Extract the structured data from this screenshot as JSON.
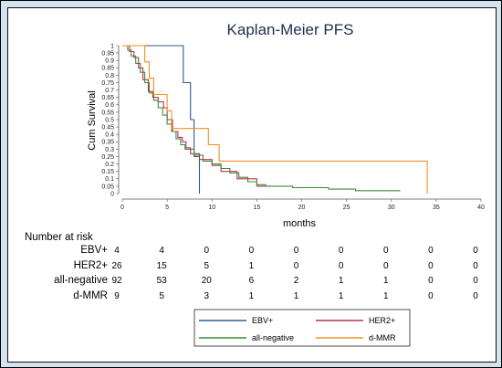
{
  "chart_data": {
    "type": "line",
    "title": "Kaplan-Meier PFS",
    "xlabel": "months",
    "ylabel": "Cum Survival",
    "xlim": [
      0,
      40
    ],
    "ylim": [
      0,
      1
    ],
    "xticks": [
      "0",
      "5",
      "10",
      "15",
      "20",
      "25",
      "30",
      "35",
      "40"
    ],
    "yticks": [
      "0",
      "0.05",
      "0.1",
      "0.15",
      "0.2",
      "0.25",
      "0.3",
      "0.35",
      "0.4",
      "0.45",
      "0.5",
      "0.55",
      "0.6",
      "0.65",
      "0.7",
      "0.75",
      "0.8",
      "0.85",
      "0.9",
      "0.95",
      "1"
    ],
    "series": [
      {
        "name": "EBV+",
        "color": "#2c5d8e",
        "points": [
          [
            0,
            1
          ],
          [
            6.8,
            1
          ],
          [
            6.8,
            0.75
          ],
          [
            7.6,
            0.75
          ],
          [
            7.6,
            0.5
          ],
          [
            8.0,
            0.5
          ],
          [
            8.0,
            0.25
          ],
          [
            8.6,
            0.25
          ],
          [
            8.6,
            0
          ]
        ]
      },
      {
        "name": "HER2+",
        "color": "#c0304a",
        "points": [
          [
            0,
            1
          ],
          [
            0.8,
            1
          ],
          [
            0.8,
            0.96
          ],
          [
            1.3,
            0.96
          ],
          [
            1.3,
            0.92
          ],
          [
            1.8,
            0.92
          ],
          [
            1.8,
            0.85
          ],
          [
            2.3,
            0.85
          ],
          [
            2.3,
            0.77
          ],
          [
            2.9,
            0.77
          ],
          [
            2.9,
            0.69
          ],
          [
            3.4,
            0.69
          ],
          [
            3.4,
            0.65
          ],
          [
            4.0,
            0.65
          ],
          [
            4.0,
            0.62
          ],
          [
            4.6,
            0.62
          ],
          [
            4.6,
            0.58
          ],
          [
            5.0,
            0.58
          ],
          [
            5.0,
            0.5
          ],
          [
            5.6,
            0.5
          ],
          [
            5.6,
            0.42
          ],
          [
            6.2,
            0.42
          ],
          [
            6.2,
            0.38
          ],
          [
            6.7,
            0.38
          ],
          [
            6.7,
            0.35
          ],
          [
            7.1,
            0.35
          ],
          [
            7.1,
            0.31
          ],
          [
            7.6,
            0.31
          ],
          [
            7.6,
            0.27
          ],
          [
            8.6,
            0.27
          ],
          [
            8.6,
            0.23
          ],
          [
            10.0,
            0.23
          ],
          [
            10.0,
            0.19
          ],
          [
            11.0,
            0.19
          ],
          [
            11.0,
            0.15
          ],
          [
            12.8,
            0.15
          ],
          [
            12.8,
            0.1
          ],
          [
            15.0,
            0.1
          ],
          [
            15.0,
            0.05
          ],
          [
            16.5,
            0.05
          ]
        ]
      },
      {
        "name": "all-negative",
        "color": "#3d8a3d",
        "points": [
          [
            0,
            1
          ],
          [
            0.6,
            1
          ],
          [
            0.6,
            0.97
          ],
          [
            1.0,
            0.97
          ],
          [
            1.0,
            0.93
          ],
          [
            1.5,
            0.93
          ],
          [
            1.5,
            0.88
          ],
          [
            2.0,
            0.88
          ],
          [
            2.0,
            0.82
          ],
          [
            2.5,
            0.82
          ],
          [
            2.5,
            0.75
          ],
          [
            3.0,
            0.75
          ],
          [
            3.0,
            0.68
          ],
          [
            3.5,
            0.68
          ],
          [
            3.5,
            0.63
          ],
          [
            4.0,
            0.63
          ],
          [
            4.0,
            0.58
          ],
          [
            4.5,
            0.58
          ],
          [
            4.5,
            0.53
          ],
          [
            5.0,
            0.53
          ],
          [
            5.0,
            0.47
          ],
          [
            5.5,
            0.47
          ],
          [
            5.5,
            0.42
          ],
          [
            6.0,
            0.42
          ],
          [
            6.0,
            0.37
          ],
          [
            6.5,
            0.37
          ],
          [
            6.5,
            0.33
          ],
          [
            7.0,
            0.33
          ],
          [
            7.0,
            0.3
          ],
          [
            8.0,
            0.3
          ],
          [
            8.0,
            0.26
          ],
          [
            9.0,
            0.26
          ],
          [
            9.0,
            0.22
          ],
          [
            10.0,
            0.22
          ],
          [
            10.0,
            0.2
          ],
          [
            11.0,
            0.2
          ],
          [
            11.0,
            0.17
          ],
          [
            12.0,
            0.17
          ],
          [
            12.0,
            0.14
          ],
          [
            13.0,
            0.14
          ],
          [
            13.0,
            0.11
          ],
          [
            14.0,
            0.11
          ],
          [
            14.0,
            0.08
          ],
          [
            15.0,
            0.08
          ],
          [
            15.0,
            0.06
          ],
          [
            16.0,
            0.06
          ],
          [
            16.0,
            0.05
          ],
          [
            19.0,
            0.05
          ],
          [
            19.0,
            0.04
          ],
          [
            23.0,
            0.04
          ],
          [
            23.0,
            0.03
          ],
          [
            26.0,
            0.03
          ],
          [
            26.0,
            0.02
          ],
          [
            31.0,
            0.02
          ]
        ]
      },
      {
        "name": "d-MMR",
        "color": "#f0921e",
        "points": [
          [
            0,
            1
          ],
          [
            2.5,
            1
          ],
          [
            2.5,
            0.89
          ],
          [
            3.0,
            0.89
          ],
          [
            3.0,
            0.78
          ],
          [
            3.5,
            0.78
          ],
          [
            3.5,
            0.67
          ],
          [
            5.0,
            0.67
          ],
          [
            5.0,
            0.56
          ],
          [
            5.5,
            0.56
          ],
          [
            5.5,
            0.44
          ],
          [
            9.6,
            0.44
          ],
          [
            9.6,
            0.33
          ],
          [
            10.8,
            0.33
          ],
          [
            10.8,
            0.22
          ],
          [
            34.0,
            0.22
          ],
          [
            34.0,
            0
          ]
        ]
      }
    ],
    "risk_table": {
      "title": "Number at risk",
      "timepoints": [
        "0",
        "5",
        "10",
        "15",
        "20",
        "25",
        "30",
        "35",
        "40"
      ],
      "rows": [
        {
          "label": "EBV+",
          "values": [
            "4",
            "4",
            "0",
            "0",
            "0",
            "0",
            "0",
            "0",
            "0"
          ]
        },
        {
          "label": "HER2+",
          "values": [
            "26",
            "15",
            "5",
            "1",
            "0",
            "0",
            "0",
            "0",
            "0"
          ]
        },
        {
          "label": "all-negative",
          "values": [
            "92",
            "53",
            "20",
            "6",
            "2",
            "1",
            "1",
            "0",
            "0"
          ]
        },
        {
          "label": "d-MMR",
          "values": [
            "9",
            "5",
            "3",
            "1",
            "1",
            "1",
            "1",
            "0",
            "0"
          ]
        }
      ]
    },
    "legend": {
      "placement": "bottom-center",
      "entries": [
        {
          "name": "EBV+",
          "color": "#2c5d8e"
        },
        {
          "name": "HER2+",
          "color": "#c0304a"
        },
        {
          "name": "all-negative",
          "color": "#3d8a3d"
        },
        {
          "name": "d-MMR",
          "color": "#f0921e"
        }
      ]
    },
    "grid": false
  }
}
